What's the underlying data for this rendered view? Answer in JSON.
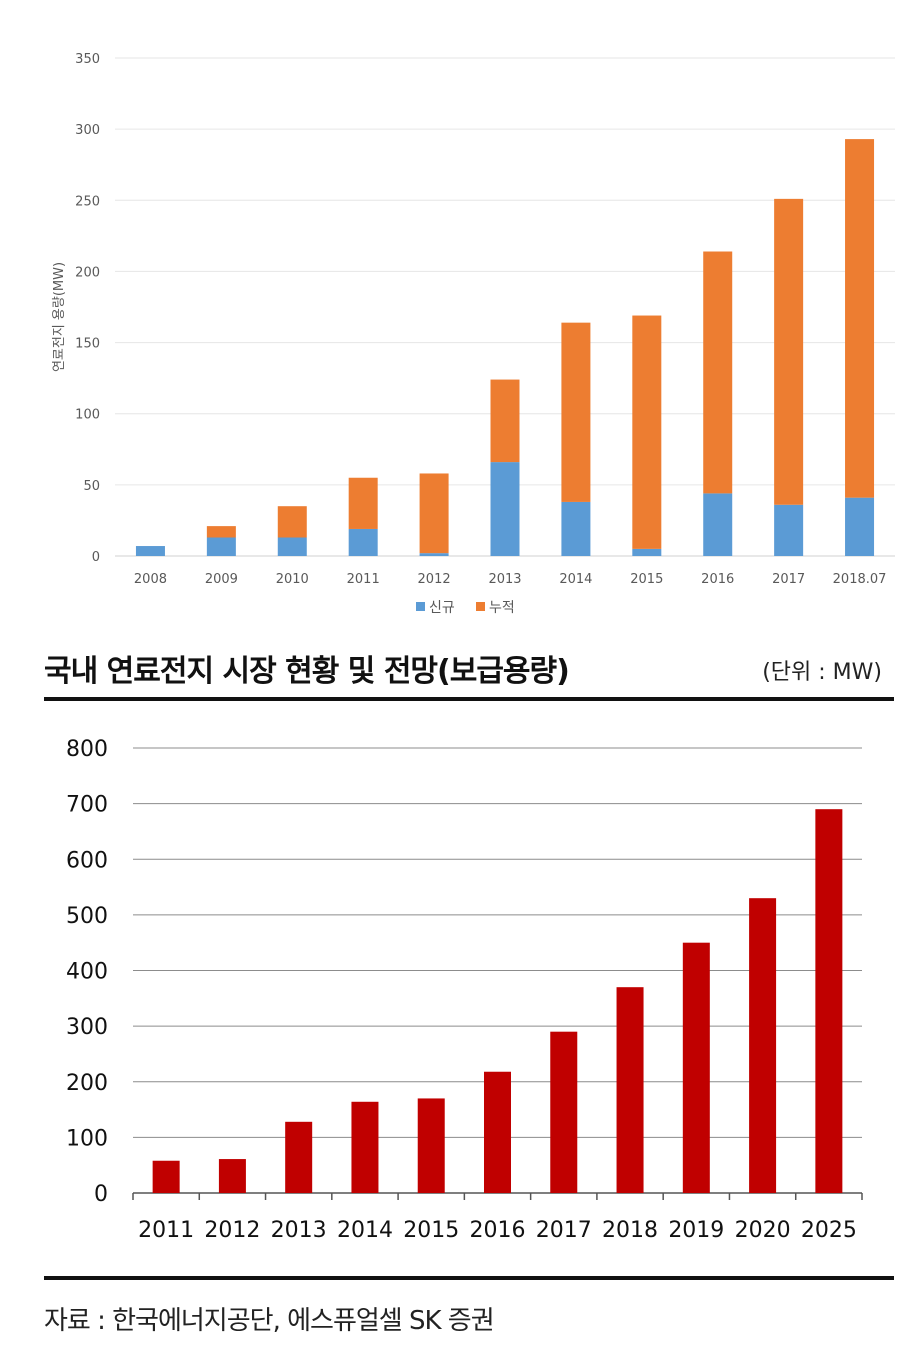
{
  "chart_data": [
    {
      "type": "bar",
      "stacked": true,
      "ylabel": "연료전지 용량(MW)",
      "ylim": [
        0,
        350
      ],
      "yticks": [
        0,
        50,
        100,
        150,
        200,
        250,
        300,
        350
      ],
      "grid": true,
      "legend_position": "bottom",
      "categories": [
        "2008",
        "2009",
        "2010",
        "2011",
        "2012",
        "2013",
        "2014",
        "2015",
        "2016",
        "2017",
        "2018.07"
      ],
      "series": [
        {
          "name": "신규",
          "color": "#5b9bd5",
          "values": [
            7,
            13,
            13,
            19,
            2,
            66,
            38,
            5,
            44,
            36,
            41
          ]
        },
        {
          "name": "누적",
          "color": "#ed7d31",
          "values": [
            0,
            8,
            22,
            36,
            56,
            58,
            126,
            164,
            170,
            215,
            252
          ]
        }
      ]
    },
    {
      "type": "bar",
      "ylim": [
        0,
        800
      ],
      "yticks": [
        0,
        100,
        200,
        300,
        400,
        500,
        600,
        700,
        800
      ],
      "grid": true,
      "color": "#c00000",
      "categories": [
        "2011",
        "2012",
        "2013",
        "2014",
        "2015",
        "2016",
        "2017",
        "2018",
        "2019",
        "2020",
        "2025"
      ],
      "values": [
        58,
        61,
        128,
        164,
        170,
        218,
        290,
        370,
        450,
        530,
        690
      ]
    }
  ],
  "header": {
    "title": "국내 연료전지 시장 현황 및 전망(보급용량)",
    "unit": "(단위 : MW)"
  },
  "footer": {
    "source": "자료 : 한국에너지공단, 에스퓨얼셀 SK 증권"
  }
}
